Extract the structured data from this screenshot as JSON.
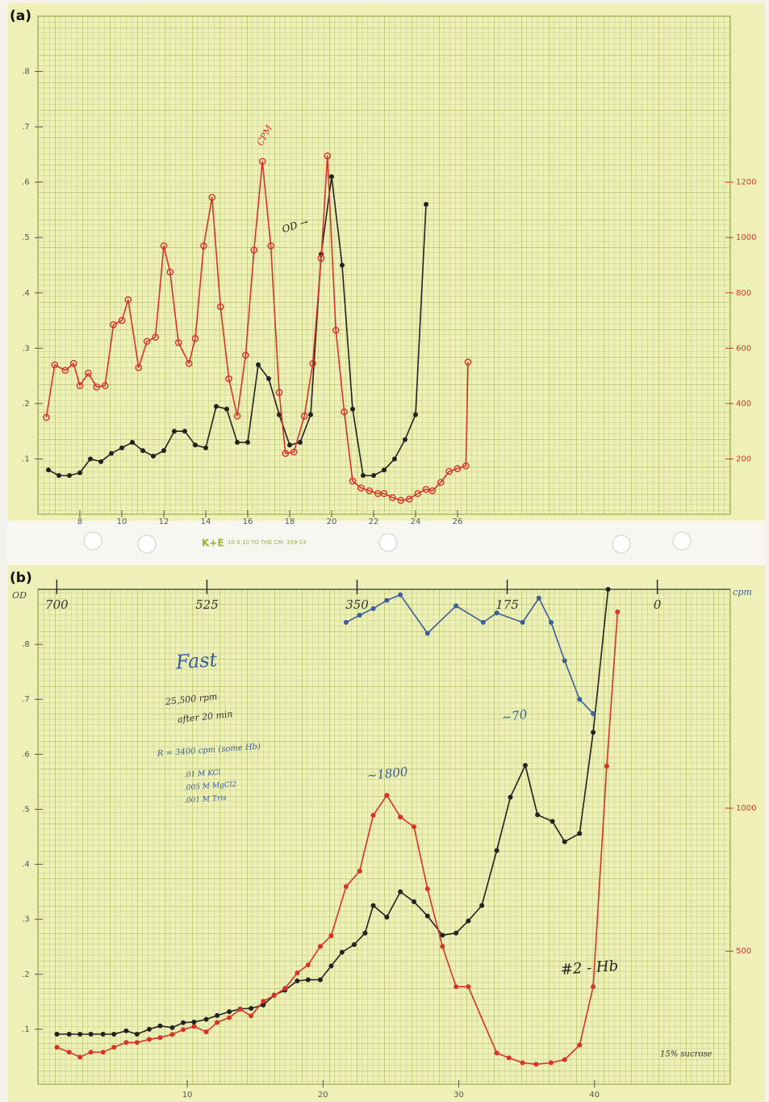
{
  "strip": {
    "brand": "K+E",
    "caption": "10 X 10 TO THE CM. 359-14"
  },
  "chart_data": [
    {
      "type": "line",
      "label": "(a)",
      "grid": true,
      "xlim": [
        6,
        39
      ],
      "xticks": [
        8,
        10,
        12,
        14,
        16,
        18,
        20,
        22,
        24,
        26
      ],
      "ylim": [
        0,
        0.9
      ],
      "yticks": [
        {
          "value": 0.1,
          "label": ".1"
        },
        {
          "value": 0.2,
          "label": ".2"
        },
        {
          "value": 0.3,
          "label": ".3"
        },
        {
          "value": 0.4,
          "label": ".4"
        },
        {
          "value": 0.5,
          "label": ".5"
        },
        {
          "value": 0.6,
          "label": ".6"
        },
        {
          "value": 0.7,
          "label": ".7"
        },
        {
          "value": 0.8,
          "label": ".8"
        }
      ],
      "y2lim": [
        0,
        1800
      ],
      "y2ticks": [
        200,
        400,
        600,
        800,
        1000,
        1200
      ],
      "y2color": "#d8322a",
      "series": [
        {
          "color": "#222222",
          "marker": "filled",
          "x": [
            6.5,
            7,
            7.5,
            8,
            8.5,
            9,
            9.5,
            10,
            10.5,
            11,
            11.5,
            12,
            12.5,
            13,
            13.5,
            14,
            14.5,
            15,
            15.5,
            16,
            16.5,
            17,
            17.5,
            18,
            18.5,
            19,
            19.5,
            20,
            20.5,
            21,
            21.5,
            22,
            22.5,
            23,
            23.5,
            24,
            24.5
          ],
          "values": [
            0.08,
            0.07,
            0.07,
            0.075,
            0.1,
            0.095,
            0.11,
            0.12,
            0.13,
            0.115,
            0.105,
            0.115,
            0.15,
            0.15,
            0.125,
            0.12,
            0.195,
            0.19,
            0.13,
            0.13,
            0.27,
            0.245,
            0.18,
            0.125,
            0.13,
            0.18,
            0.47,
            0.61,
            0.45,
            0.19,
            0.07,
            0.07,
            0.08,
            0.1,
            0.135,
            0.18,
            0.56
          ]
        },
        {
          "color": "#d8322a",
          "marker": "open",
          "axis": "y2",
          "x": [
            6.4,
            6.8,
            7.3,
            7.7,
            8.0,
            8.4,
            8.8,
            9.2,
            9.6,
            10.0,
            10.3,
            10.8,
            11.2,
            11.6,
            12.0,
            12.3,
            12.7,
            13.2,
            13.5,
            13.9,
            14.3,
            14.7,
            15.1,
            15.5,
            15.9,
            16.3,
            16.7,
            17.1,
            17.5,
            17.8,
            18.2,
            18.7,
            19.1,
            19.5,
            19.8,
            20.2,
            20.6,
            21.0,
            21.4,
            21.8,
            22.2,
            22.5,
            22.9,
            23.3,
            23.7,
            24.1,
            24.5,
            24.8,
            25.2,
            25.6,
            26.0,
            26.4,
            26.5
          ],
          "values": [
            350,
            540,
            520,
            545,
            465,
            510,
            460,
            465,
            685,
            700,
            775,
            530,
            625,
            640,
            970,
            875,
            620,
            545,
            635,
            970,
            1145,
            750,
            490,
            355,
            575,
            955,
            1275,
            970,
            440,
            220,
            225,
            355,
            545,
            925,
            1295,
            665,
            370,
            120,
            95,
            85,
            75,
            75,
            60,
            50,
            55,
            75,
            90,
            85,
            115,
            155,
            165,
            175,
            550
          ]
        }
      ],
      "annotations": [
        {
          "text": "CPM",
          "color": "#d8322a"
        },
        {
          "text": "OD →",
          "color": "#222222"
        }
      ]
    },
    {
      "type": "line",
      "label": "(b)",
      "grid": true,
      "ylabel": "OD",
      "y2label": "cpm",
      "xlim": [
        -1,
        50
      ],
      "xticks": [
        10,
        20,
        30,
        40
      ],
      "x2lim": [
        722,
        -85
      ],
      "x2ticks": [
        700,
        525,
        350,
        175,
        0
      ],
      "ylim": [
        0,
        0.9
      ],
      "yticks": [
        {
          "value": 0.1,
          "label": ".1"
        },
        {
          "value": 0.2,
          "label": ".2"
        },
        {
          "value": 0.3,
          "label": ".3"
        },
        {
          "value": 0.4,
          "label": ".4"
        },
        {
          "value": 0.5,
          "label": ".5"
        },
        {
          "value": 0.6,
          "label": ".6"
        },
        {
          "value": 0.7,
          "label": ".7"
        },
        {
          "value": 0.8,
          "label": ".8"
        }
      ],
      "y2lim": [
        35,
        1765
      ],
      "y2ticks": [
        500,
        1000
      ],
      "y2color": "#d8322a",
      "series": [
        {
          "color": "#222222",
          "marker": "filled",
          "x": [
            0.4,
            1.3,
            2.1,
            2.9,
            3.8,
            4.6,
            5.5,
            6.3,
            7.2,
            8.0,
            8.9,
            9.7,
            10.5,
            11.4,
            12.2,
            13.1,
            13.9,
            14.7,
            15.6,
            16.4,
            17.2,
            18.1,
            18.9,
            19.8,
            20.6,
            21.4,
            22.3,
            23.1,
            23.7,
            24.7,
            25.7,
            26.7,
            27.7,
            28.8,
            29.8,
            30.7,
            31.7,
            32.8,
            33.8,
            34.9,
            35.8,
            36.9,
            37.8,
            38.9,
            39.9,
            41.0
          ],
          "values": [
            0.091,
            0.091,
            0.091,
            0.091,
            0.091,
            0.091,
            0.097,
            0.091,
            0.1,
            0.106,
            0.103,
            0.112,
            0.113,
            0.118,
            0.125,
            0.132,
            0.137,
            0.138,
            0.144,
            0.162,
            0.171,
            0.188,
            0.19,
            0.19,
            0.215,
            0.24,
            0.254,
            0.275,
            0.325,
            0.304,
            0.35,
            0.332,
            0.306,
            0.271,
            0.275,
            0.297,
            0.325,
            0.425,
            0.522,
            0.58,
            0.49,
            0.478,
            0.441,
            0.456,
            0.64,
            0.9
          ]
        },
        {
          "color": "#d8322a",
          "marker": "filled",
          "axis": "y2",
          "x": [
            0.4,
            1.3,
            2.1,
            2.9,
            3.8,
            4.6,
            5.5,
            6.3,
            7.2,
            8.0,
            8.9,
            9.7,
            10.5,
            11.4,
            12.2,
            13.1,
            13.9,
            14.7,
            15.6,
            16.4,
            17.2,
            18.1,
            18.9,
            19.8,
            20.6,
            21.7,
            22.7,
            23.7,
            24.7,
            25.7,
            26.7,
            27.7,
            28.8,
            29.8,
            30.7,
            32.8,
            33.7,
            34.7,
            35.7,
            36.8,
            37.8,
            38.9,
            39.9,
            40.9,
            41.7
          ],
          "values": [
            164,
            147,
            130,
            147,
            147,
            164,
            181,
            181,
            192,
            198,
            209,
            226,
            237,
            218,
            251,
            268,
            297,
            274,
            325,
            345,
            370,
            424,
            452,
            517,
            554,
            726,
            780,
            975,
            1045,
            969,
            935,
            718,
            517,
            376,
            376,
            144,
            127,
            110,
            105,
            110,
            121,
            172,
            376,
            1147,
            1686
          ]
        },
        {
          "color": "#3a5f9a",
          "marker": "filled",
          "x": [
            21.7,
            22.7,
            23.7,
            24.7,
            25.7,
            27.7,
            29.8,
            31.8,
            32.8,
            34.7,
            35.9,
            36.8,
            37.8,
            38.9,
            39.9
          ],
          "values": [
            0.84,
            0.853,
            0.865,
            0.88,
            0.89,
            0.82,
            0.87,
            0.84,
            0.857,
            0.84,
            0.884,
            0.84,
            0.77,
            0.7,
            0.674
          ]
        }
      ],
      "annotations": [
        {
          "text": "Fast",
          "color": "#3a5f9a"
        },
        {
          "text": "25,500 rpm",
          "color": "#333333"
        },
        {
          "text": "after 20 min",
          "color": "#333333"
        },
        {
          "text": "R = 3400 cpm (some Hb)",
          "color": "#3a5f9a"
        },
        {
          "text": ".01 M KCl",
          "color": "#3a5f9a"
        },
        {
          "text": ".005 M MgCl2",
          "color": "#3a5f9a"
        },
        {
          "text": ".001 M Tris",
          "color": "#3a5f9a"
        },
        {
          "text": "~1800",
          "color": "#3a5f9a"
        },
        {
          "text": "~70",
          "color": "#3a5f9a"
        },
        {
          "text": "#2 - Hb",
          "color": "#222222"
        },
        {
          "text": "15% sucrose",
          "color": "#333333"
        }
      ]
    }
  ]
}
